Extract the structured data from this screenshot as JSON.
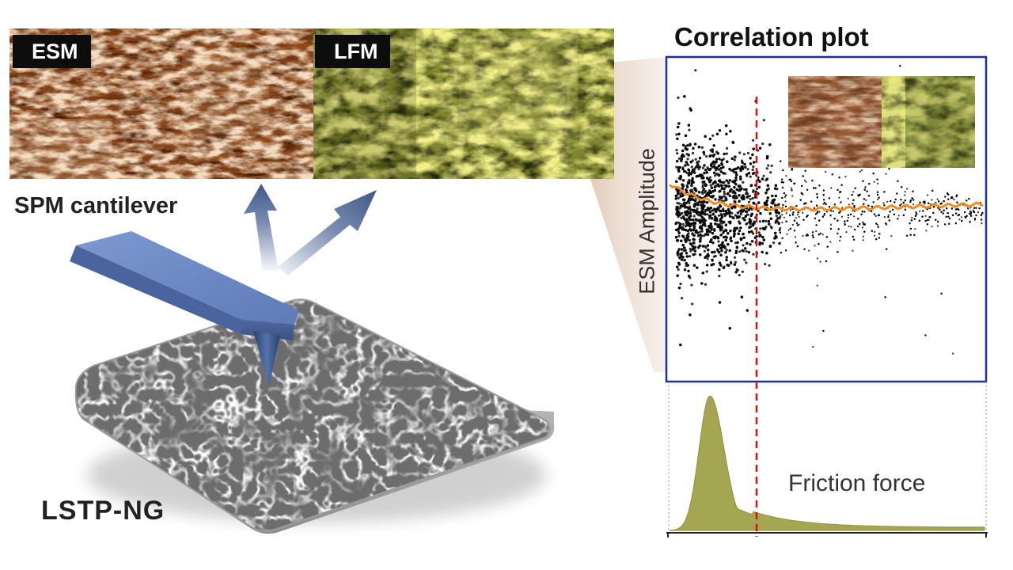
{
  "figure": {
    "images": {
      "esm": {
        "label": "ESM"
      },
      "lfm": {
        "label": "LFM"
      }
    },
    "cantilever_label": "SPM cantilever",
    "sample_label": "LSTP-NG",
    "correlation": {
      "title": "Correlation plot",
      "ylabel": "ESM Amplitude"
    },
    "histogram": {
      "label": "Friction force"
    },
    "colors": {
      "esm_dark": "#4a1c05",
      "esm_mid": "#8e4a1c",
      "esm_light": "#f4dcc0",
      "lfm_dark": "#353a12",
      "lfm_mid": "#8f9434",
      "lfm_light": "#f3f08a",
      "cantilever": "#6e8cc6",
      "arrow": "#4d6595",
      "plot_frame": "#1a2fa8",
      "trend_line": "#f08c1e",
      "threshold": "#e01010",
      "histogram_fill": "#a5a652"
    }
  }
}
